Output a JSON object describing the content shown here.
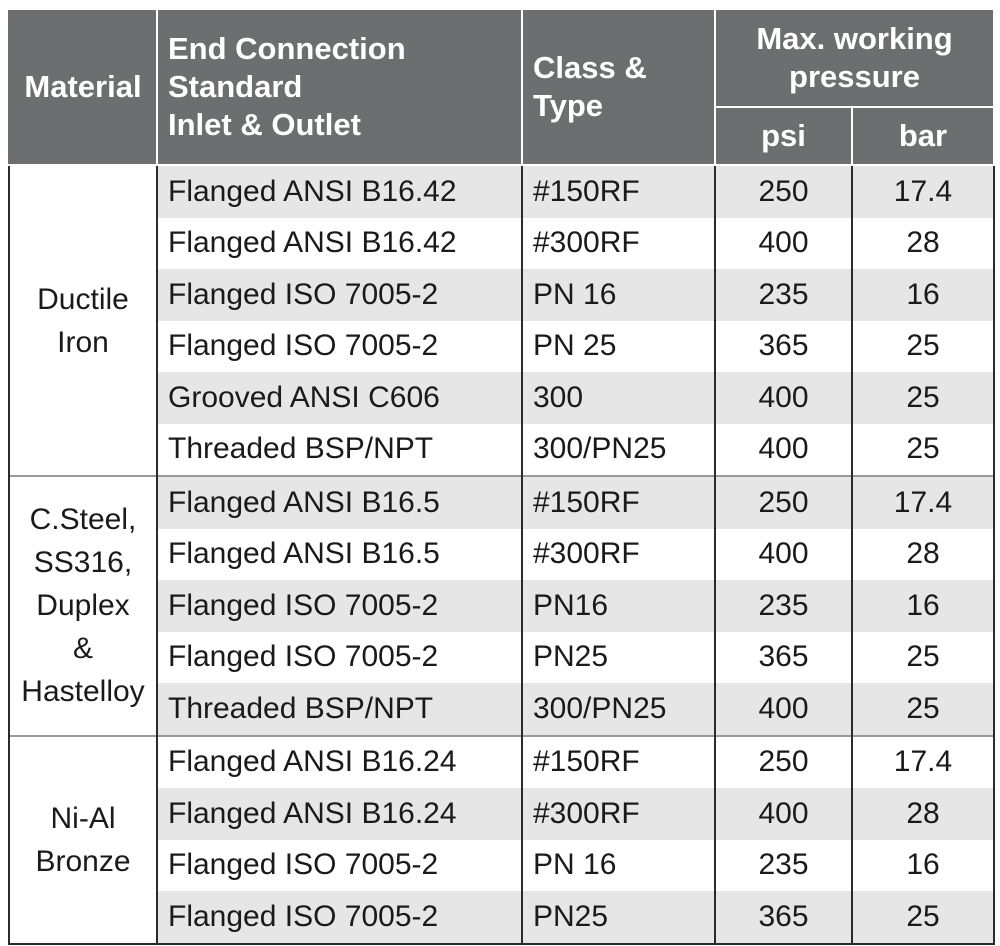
{
  "header": {
    "material": "Material",
    "connection": [
      "End Connection",
      "Standard",
      "Inlet & Outlet"
    ],
    "class_type": [
      "Class &",
      "Type"
    ],
    "pressure": [
      "Max. working",
      "pressure"
    ],
    "psi": "psi",
    "bar": "bar"
  },
  "groups": [
    {
      "material": [
        "Ductile",
        "Iron"
      ],
      "rows": [
        [
          "Flanged ANSI B16.42",
          "#150RF",
          250,
          17.4
        ],
        [
          "Flanged ANSI B16.42",
          "#300RF",
          400,
          28
        ],
        [
          "Flanged ISO 7005-2",
          "PN 16",
          235,
          16
        ],
        [
          "Flanged ISO 7005-2",
          "PN 25",
          365,
          25
        ],
        [
          "Grooved ANSI C606",
          "300",
          400,
          25
        ],
        [
          "Threaded BSP/NPT",
          "300/PN25",
          400,
          25
        ]
      ]
    },
    {
      "material": [
        "C.Steel,",
        "SS316,",
        "Duplex",
        "&",
        "Hastelloy"
      ],
      "rows": [
        [
          "Flanged ANSI B16.5",
          "#150RF",
          250,
          17.4
        ],
        [
          "Flanged ANSI B16.5",
          "#300RF",
          400,
          28
        ],
        [
          "Flanged ISO 7005-2",
          "PN16",
          235,
          16
        ],
        [
          "Flanged ISO 7005-2",
          "PN25",
          365,
          25
        ],
        [
          "Threaded BSP/NPT",
          "300/PN25",
          400,
          25
        ]
      ]
    },
    {
      "material": [
        "Ni-Al",
        "Bronze"
      ],
      "rows": [
        [
          "Flanged ANSI B16.24",
          "#150RF",
          250,
          17.4
        ],
        [
          "Flanged ANSI B16.24",
          "#300RF",
          400,
          28
        ],
        [
          "Flanged ISO 7005-2",
          "PN 16",
          235,
          16
        ],
        [
          "Flanged ISO 7005-2",
          "PN25",
          365,
          25
        ]
      ]
    }
  ]
}
